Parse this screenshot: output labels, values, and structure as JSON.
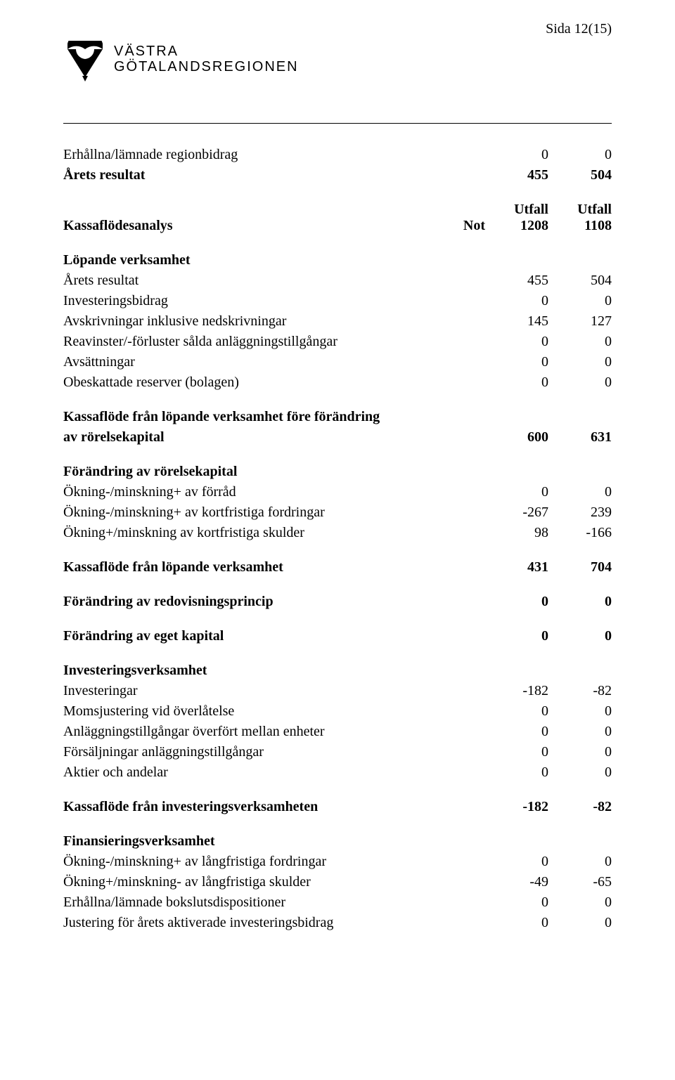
{
  "page_number": "Sida 12(15)",
  "logo": {
    "line1": "VÄSTRA",
    "line2": "GÖTALANDSREGIONEN"
  },
  "hdr": {
    "not": "Not",
    "utfall": "Utfall",
    "p1": "1208",
    "p2": "1108"
  },
  "rows": [
    {
      "label": "Erhållna/lämnade regionbidrag",
      "v1": "0",
      "v2": "0"
    },
    {
      "label": "Årets resultat",
      "v1": "455",
      "v2": "504",
      "bold": true
    },
    {
      "label": "Kassaflödesanalys",
      "bold": true,
      "header_row": true
    },
    {
      "label": "Löpande verksamhet",
      "bold": true,
      "section": true
    },
    {
      "label": "Årets resultat",
      "v1": "455",
      "v2": "504"
    },
    {
      "label": "Investeringsbidrag",
      "v1": "0",
      "v2": "0"
    },
    {
      "label": "Avskrivningar inklusive nedskrivningar",
      "v1": "145",
      "v2": "127"
    },
    {
      "label": "Reavinster/-förluster sålda anläggningstillgångar",
      "v1": "0",
      "v2": "0"
    },
    {
      "label": "Avsättningar",
      "v1": "0",
      "v2": "0"
    },
    {
      "label": "Obeskattade reserver (bolagen)",
      "v1": "0",
      "v2": "0"
    },
    {
      "label": "Kassaflöde från löpande verksamhet före förändring",
      "bold": true,
      "section": true
    },
    {
      "label": "av rörelsekapital",
      "v1": "600",
      "v2": "631",
      "bold": true
    },
    {
      "label": "Förändring av rörelsekapital",
      "bold": true,
      "section": true
    },
    {
      "label": "Ökning-/minskning+ av förråd",
      "v1": "0",
      "v2": "0"
    },
    {
      "label": "Ökning-/minskning+ av kortfristiga fordringar",
      "v1": "-267",
      "v2": "239"
    },
    {
      "label": "Ökning+/minskning av kortfristiga skulder",
      "v1": "98",
      "v2": "-166"
    },
    {
      "label": "Kassaflöde från löpande verksamhet",
      "v1": "431",
      "v2": "704",
      "bold": true
    },
    {
      "label": "Förändring av redovisningsprincip",
      "v1": "0",
      "v2": "0",
      "bold": true
    },
    {
      "label": "Förändring av eget kapital",
      "v1": "0",
      "v2": "0",
      "bold": true
    },
    {
      "label": "Investeringsverksamhet",
      "bold": true,
      "section": true
    },
    {
      "label": "Investeringar",
      "v1": "-182",
      "v2": "-82"
    },
    {
      "label": "Momsjustering vid överlåtelse",
      "v1": "0",
      "v2": "0"
    },
    {
      "label": "Anläggningstillgångar överfört mellan enheter",
      "v1": "0",
      "v2": "0"
    },
    {
      "label": "Försäljningar anläggningstillgångar",
      "v1": "0",
      "v2": "0"
    },
    {
      "label": "Aktier och andelar",
      "v1": "0",
      "v2": "0"
    },
    {
      "label": "Kassaflöde från investeringsverksamheten",
      "v1": "-182",
      "v2": "-82",
      "bold": true
    },
    {
      "label": "Finansieringsverksamhet",
      "bold": true,
      "section": true
    },
    {
      "label": "Ökning-/minskning+ av långfristiga fordringar",
      "v1": "0",
      "v2": "0"
    },
    {
      "label": "Ökning+/minskning- av långfristiga skulder",
      "v1": "-49",
      "v2": "-65"
    },
    {
      "label": "Erhållna/lämnade bokslutsdispositioner",
      "v1": "0",
      "v2": "0"
    },
    {
      "label": "Justering för årets aktiverade investeringsbidrag",
      "v1": "0",
      "v2": "0"
    }
  ],
  "spacer_after": [
    1,
    2,
    9,
    11,
    15,
    16,
    17,
    18,
    24,
    25
  ]
}
